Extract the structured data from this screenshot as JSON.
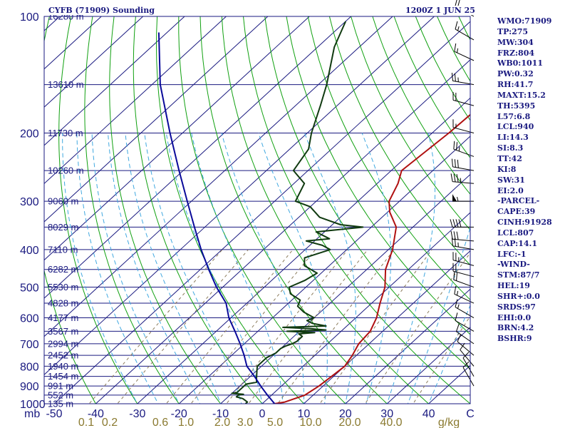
{
  "header": {
    "station": "CYFB (71909) Sounding",
    "valid_time": "1200Z  1 JUN 25"
  },
  "indices": [
    "WMO:71909",
    "TP:275",
    "MW:304",
    "FRZ:804",
    "WB0:1011",
    "PW:0.32",
    "RH:41.7",
    "MAXT:15.2",
    "TH:5395",
    "L57:6.8",
    "LCL:940",
    "LI:14.3",
    "SI:8.3",
    "TT:42",
    "KI:8",
    "SW:31",
    "EI:2.0",
    "-PARCEL-",
    "CAPE:39",
    "CINH:91928",
    "LCL:807",
    "CAP:14.1",
    "LFC:-1",
    "-WIND-",
    "STM:87/7",
    "HEL:19",
    "SHR+:0.0",
    "SRDS:97",
    "EHI:0.0",
    "BRN:4.2",
    "BSHR:9"
  ],
  "chart_data": {
    "type": "skew-t log-p sounding",
    "xlabel": "C",
    "mixing_ratio_unit": "g/kg",
    "pressure_unit": "mb",
    "xlim": [
      -50,
      50
    ],
    "ylim": [
      1000,
      100
    ],
    "pressure_ticks": [
      100,
      200,
      300,
      400,
      500,
      600,
      700,
      800,
      900,
      1000
    ],
    "temperature_ticks": [
      -50,
      -40,
      -30,
      -20,
      -10,
      0,
      10,
      20,
      30,
      40
    ],
    "mixing_ratio_labels": [
      "0.1",
      "0.2",
      "0.6",
      "1.0",
      "2.0",
      "3.0",
      "5.0",
      "10.0",
      "20.0",
      "40.0"
    ],
    "height_labels": [
      {
        "p": 100,
        "label": "16280 m"
      },
      {
        "p": 150,
        "label": "13610 m"
      },
      {
        "p": 200,
        "label": "11730 m"
      },
      {
        "p": 250,
        "label": "10260 m"
      },
      {
        "p": 300,
        "label": "9060 m"
      },
      {
        "p": 350,
        "label": "8029 m"
      },
      {
        "p": 400,
        "label": "7110 m"
      },
      {
        "p": 450,
        "label": "6282 m"
      },
      {
        "p": 500,
        "label": "5530 m"
      },
      {
        "p": 550,
        "label": "4828 m"
      },
      {
        "p": 600,
        "label": "4177 m"
      },
      {
        "p": 650,
        "label": "3567 m"
      },
      {
        "p": 700,
        "label": "2994 m"
      },
      {
        "p": 750,
        "label": "2452 m"
      },
      {
        "p": 800,
        "label": "1940 m"
      },
      {
        "p": 850,
        "label": "1454 m"
      },
      {
        "p": 900,
        "label": "991 m"
      },
      {
        "p": 950,
        "label": "552 m"
      },
      {
        "p": 1000,
        "label": "135 m"
      }
    ],
    "series": [
      {
        "color": "#b01010",
        "points": [
          [
            1010,
            1.0
          ],
          [
            990,
            5.0
          ],
          [
            950,
            8.0
          ],
          [
            900,
            9.0
          ],
          [
            850,
            9.5
          ],
          [
            800,
            10.0
          ],
          [
            750,
            9.0
          ],
          [
            700,
            7.5
          ],
          [
            650,
            7.0
          ],
          [
            600,
            5.0
          ],
          [
            550,
            2.0
          ],
          [
            500,
            -1.0
          ],
          [
            450,
            -5.5
          ],
          [
            400,
            -9.0
          ],
          [
            350,
            -14.0
          ],
          [
            320,
            -19.5
          ],
          [
            300,
            -22.5
          ],
          [
            270,
            -25.0
          ],
          [
            250,
            -27.5
          ],
          [
            200,
            -26.0
          ],
          [
            150,
            -25.0
          ],
          [
            103,
            -24.0
          ]
        ]
      },
      {
        "color": "#103a10",
        "points": [
          [
            1000,
            -4.0
          ],
          [
            990,
            -4.0
          ],
          [
            970,
            -6.0
          ],
          [
            960,
            -8.0
          ],
          [
            950,
            -8.0
          ],
          [
            945,
            -7.0
          ],
          [
            940,
            -10.0
          ],
          [
            935,
            -9.0
          ],
          [
            920,
            -9.0
          ],
          [
            890,
            -9.0
          ],
          [
            880,
            -7.0
          ],
          [
            860,
            -8.0
          ],
          [
            840,
            -9.0
          ],
          [
            820,
            -10.0
          ],
          [
            800,
            -11.0
          ],
          [
            760,
            -11.0
          ],
          [
            740,
            -10.0
          ],
          [
            720,
            -10.0
          ],
          [
            710,
            -9.5
          ],
          [
            700,
            -8.5
          ],
          [
            690,
            -8.0
          ],
          [
            670,
            -8.0
          ],
          [
            660,
            -9.5
          ],
          [
            655,
            -6.0
          ],
          [
            650,
            -13.0
          ],
          [
            645,
            -4.0
          ],
          [
            640,
            -8.0
          ],
          [
            635,
            -15.0
          ],
          [
            630,
            -5.0
          ],
          [
            620,
            -9.0
          ],
          [
            610,
            -11.0
          ],
          [
            600,
            -10.0
          ],
          [
            580,
            -14.0
          ],
          [
            560,
            -17.0
          ],
          [
            540,
            -18.0
          ],
          [
            520,
            -22.0
          ],
          [
            500,
            -24.0
          ],
          [
            480,
            -22.0
          ],
          [
            460,
            -21.0
          ],
          [
            440,
            -26.0
          ],
          [
            420,
            -28.0
          ],
          [
            400,
            -24.0
          ],
          [
            390,
            -27.0
          ],
          [
            380,
            -32.0
          ],
          [
            375,
            -27.0
          ],
          [
            360,
            -32.0
          ],
          [
            350,
            -22.0
          ],
          [
            345,
            -28.0
          ],
          [
            330,
            -35.0
          ],
          [
            310,
            -40.0
          ],
          [
            300,
            -45.0
          ],
          [
            270,
            -47.5
          ],
          [
            250,
            -53.5
          ],
          [
            220,
            -55.5
          ],
          [
            200,
            -59.0
          ],
          [
            170,
            -64.0
          ],
          [
            150,
            -68.0
          ],
          [
            120,
            -76.0
          ],
          [
            103,
            -80.0
          ]
        ]
      },
      {
        "color": "#0a0a9a",
        "points": [
          [
            1000,
            3.0
          ],
          [
            950,
            -1.0
          ],
          [
            900,
            -5.0
          ],
          [
            850,
            -9.0
          ],
          [
            800,
            -13.5
          ],
          [
            750,
            -17.0
          ],
          [
            700,
            -21.0
          ],
          [
            650,
            -25.5
          ],
          [
            600,
            -30.5
          ],
          [
            550,
            -35.0
          ],
          [
            500,
            -41.5
          ],
          [
            450,
            -48.0
          ],
          [
            400,
            -55.0
          ],
          [
            350,
            -62.5
          ],
          [
            300,
            -71.0
          ],
          [
            250,
            -81.0
          ],
          [
            200,
            -93.0
          ],
          [
            150,
            -108.0
          ],
          [
            110,
            -122.0
          ]
        ]
      }
    ],
    "wind_barbs": [
      {
        "p": 100,
        "dir": 300,
        "spd": 20
      },
      {
        "p": 115,
        "dir": 300,
        "spd": 15
      },
      {
        "p": 130,
        "dir": 295,
        "spd": 15
      },
      {
        "p": 150,
        "dir": 280,
        "spd": 25
      },
      {
        "p": 170,
        "dir": 285,
        "spd": 20
      },
      {
        "p": 200,
        "dir": 285,
        "spd": 15
      },
      {
        "p": 230,
        "dir": 290,
        "spd": 25
      },
      {
        "p": 250,
        "dir": 280,
        "spd": 30
      },
      {
        "p": 270,
        "dir": 275,
        "spd": 35
      },
      {
        "p": 300,
        "dir": 270,
        "spd": 55
      },
      {
        "p": 350,
        "dir": 270,
        "spd": 40
      },
      {
        "p": 380,
        "dir": 275,
        "spd": 30
      },
      {
        "p": 400,
        "dir": 280,
        "spd": 25
      },
      {
        "p": 440,
        "dir": 285,
        "spd": 25
      },
      {
        "p": 470,
        "dir": 285,
        "spd": 20
      },
      {
        "p": 500,
        "dir": 290,
        "spd": 20
      },
      {
        "p": 550,
        "dir": 295,
        "spd": 15
      },
      {
        "p": 600,
        "dir": 300,
        "spd": 15
      },
      {
        "p": 650,
        "dir": 300,
        "spd": 10
      },
      {
        "p": 700,
        "dir": 305,
        "spd": 10
      },
      {
        "p": 750,
        "dir": 310,
        "spd": 10
      },
      {
        "p": 800,
        "dir": 320,
        "spd": 10
      },
      {
        "p": 850,
        "dir": 330,
        "spd": 10
      },
      {
        "p": 900,
        "dir": 330,
        "spd": 10
      }
    ]
  },
  "colors": {
    "frame": "#1a1a80",
    "isotherm": "#1a1a80",
    "dry_adiabat": "#10a010",
    "moist_adiabat": "#40a8e0",
    "mixing_ratio": "#8a7a5a",
    "mixing_label": "#8a7a30",
    "temperature": "#b01010",
    "dewpoint": "#103a10",
    "parcel": "#0a0a9a",
    "barb": "#000000"
  }
}
